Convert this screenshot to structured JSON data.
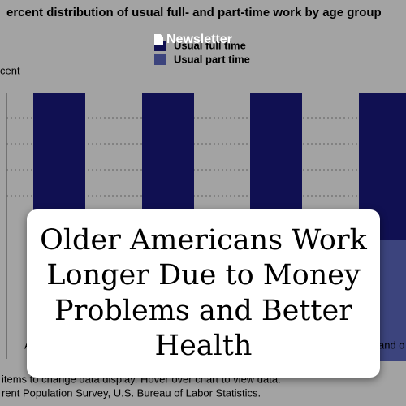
{
  "background": {
    "chart_title": "ercent distribution of usual full- and part-time work by age group",
    "legend": [
      "Usual full time",
      "Usual part time"
    ],
    "axis_label": "cent",
    "categories": [
      "A",
      "and o"
    ],
    "notes": [
      "items to change data display. Hover over chart to view data.",
      "rent Population Survey, U.S. Bureau of Labor Statistics."
    ]
  },
  "badge": "Newsletter",
  "headline": [
    "Older Americans Work",
    "Longer Due to Money",
    "Problems and Better",
    "Health"
  ]
}
